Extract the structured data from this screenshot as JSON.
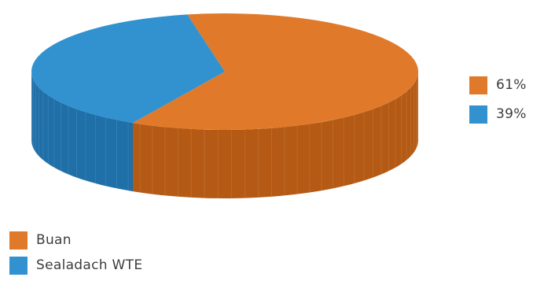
{
  "chart_data": {
    "type": "pie",
    "title": "",
    "categories": [
      "Buan",
      "Sealadach WTE"
    ],
    "values": [
      61,
      39
    ],
    "value_labels": [
      "61%",
      "39%"
    ],
    "legend_placement": "bottom-left",
    "value_legend_placement": "right",
    "colors": [
      "#e07a2a",
      "#3192cf"
    ],
    "side_colors": [
      "#b45a14",
      "#1f6fa8"
    ]
  }
}
